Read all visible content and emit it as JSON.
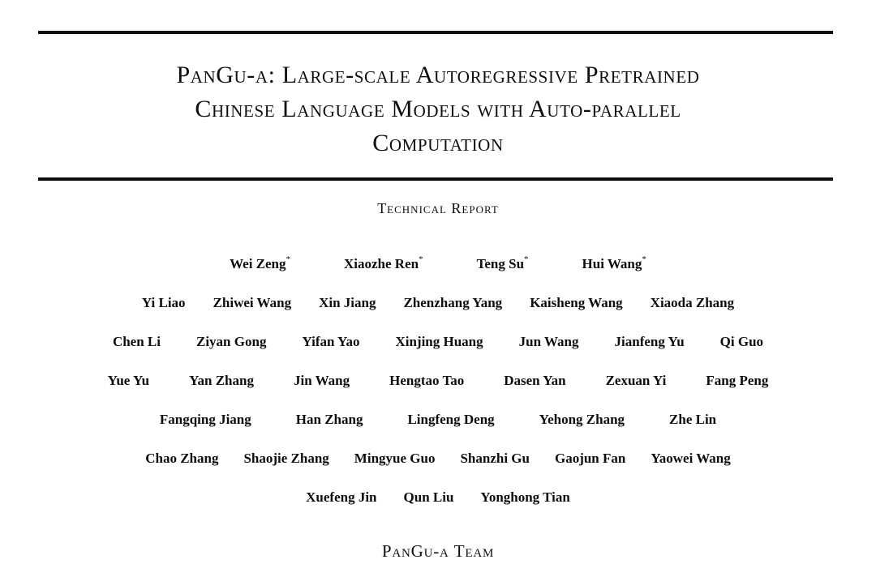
{
  "colors": {
    "background": "#ffffff",
    "text": "#0d0d0d",
    "rule": "#0d0d0d"
  },
  "paper": {
    "title_lines": [
      "PanGu-α: Large-scale Autoregressive Pretrained",
      "Chinese Language Models with Auto-parallel",
      "Computation"
    ],
    "subtitle": "Technical Report",
    "equal_contribution_marker": "*",
    "author_rows": [
      [
        {
          "name": "Wei Zeng",
          "mark": "*"
        },
        {
          "name": "Xiaozhe Ren",
          "mark": "*"
        },
        {
          "name": "Teng Su",
          "mark": "*"
        },
        {
          "name": "Hui Wang",
          "mark": "*"
        }
      ],
      [
        {
          "name": "Yi Liao"
        },
        {
          "name": "Zhiwei Wang"
        },
        {
          "name": "Xin Jiang"
        },
        {
          "name": "Zhenzhang Yang"
        },
        {
          "name": "Kaisheng Wang"
        },
        {
          "name": "Xiaoda Zhang"
        }
      ],
      [
        {
          "name": "Chen Li"
        },
        {
          "name": "Ziyan Gong"
        },
        {
          "name": "Yifan Yao"
        },
        {
          "name": "Xinjing Huang"
        },
        {
          "name": "Jun Wang"
        },
        {
          "name": "Jianfeng Yu"
        },
        {
          "name": "Qi Guo"
        }
      ],
      [
        {
          "name": "Yue Yu"
        },
        {
          "name": "Yan Zhang"
        },
        {
          "name": "Jin Wang"
        },
        {
          "name": "Hengtao Tao"
        },
        {
          "name": "Dasen Yan"
        },
        {
          "name": "Zexuan Yi"
        },
        {
          "name": "Fang Peng"
        }
      ],
      [
        {
          "name": "Fangqing Jiang"
        },
        {
          "name": "Han Zhang"
        },
        {
          "name": "Lingfeng Deng"
        },
        {
          "name": "Yehong Zhang"
        },
        {
          "name": "Zhe Lin"
        }
      ],
      [
        {
          "name": "Chao Zhang"
        },
        {
          "name": "Shaojie Zhang"
        },
        {
          "name": "Mingyue Guo"
        },
        {
          "name": "Shanzhi Gu"
        },
        {
          "name": "Gaojun Fan"
        },
        {
          "name": "Yaowei Wang"
        }
      ],
      [
        {
          "name": "Xuefeng Jin"
        },
        {
          "name": "Qun Liu"
        },
        {
          "name": "Yonghong Tian"
        }
      ]
    ],
    "team": "PanGu-α Team"
  }
}
